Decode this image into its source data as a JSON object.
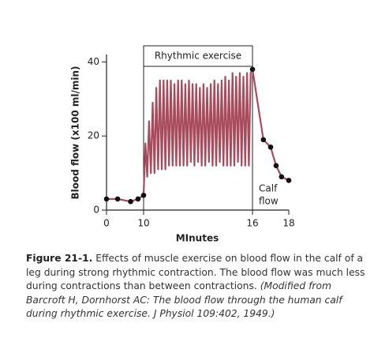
{
  "chart_data": {
    "type": "line",
    "y_label": "Blood flow (x100 ml/min)",
    "x_label": "MInutes",
    "color": "#a84b5c",
    "x": [
      0,
      3,
      6.5,
      8.5,
      10,
      10.1,
      10.2,
      10.3,
      10.4,
      10.5,
      10.6,
      10.7,
      10.8,
      10.9,
      11.0,
      11.1,
      11.2,
      11.3,
      11.4,
      11.5,
      11.6,
      11.7,
      11.8,
      11.9,
      12.0,
      12.1,
      12.2,
      12.3,
      12.4,
      12.5,
      12.6,
      12.7,
      12.8,
      12.9,
      13.0,
      13.1,
      13.2,
      13.3,
      13.4,
      13.5,
      13.6,
      13.7,
      13.8,
      13.9,
      14.0,
      14.1,
      14.2,
      14.3,
      14.4,
      14.5,
      14.6,
      14.7,
      14.8,
      14.9,
      15.0,
      15.1,
      15.2,
      15.3,
      15.4,
      15.5,
      15.6,
      15.7,
      15.8,
      15.9,
      16,
      16.6,
      17,
      17.3,
      17.6,
      18
    ],
    "values": [
      3,
      3,
      2.3,
      3,
      4,
      18,
      9,
      24,
      10,
      29,
      10,
      33,
      11,
      35,
      11,
      35,
      11,
      35,
      12,
      35,
      12,
      34,
      12,
      35,
      12,
      35,
      12,
      34,
      12,
      35,
      13,
      34,
      12,
      34,
      13,
      33,
      12,
      34,
      12,
      33,
      13,
      34,
      12,
      35,
      12,
      34,
      13,
      35,
      12,
      36,
      12,
      35,
      12,
      37,
      12,
      36,
      13,
      37,
      12,
      36,
      12,
      37,
      12,
      37,
      38,
      19,
      17,
      12,
      9,
      8
    ],
    "xticks": [
      0,
      10,
      16,
      18
    ],
    "ylim": [
      0,
      42
    ],
    "yticks": [
      0,
      20,
      40
    ],
    "annotations": [
      {
        "text": "Rhythmic exercise",
        "x": [
          10,
          16
        ]
      }
    ],
    "calf_flow": {
      "x": 16,
      "lines": [
        "Calf",
        "flow"
      ]
    }
  },
  "caption": {
    "label": "Figure 21-1.",
    "text": "Effects of muscle exercise on blood flow in the calf of a leg during strong rhythmic contraction. The blood flow was much less during contractions than between contractions.",
    "source": "(Modified from Barcroft H, Dornhorst AC: The blood flow through the human calf during rhythmic exercise. J Physiol 109:402, 1949.)"
  }
}
